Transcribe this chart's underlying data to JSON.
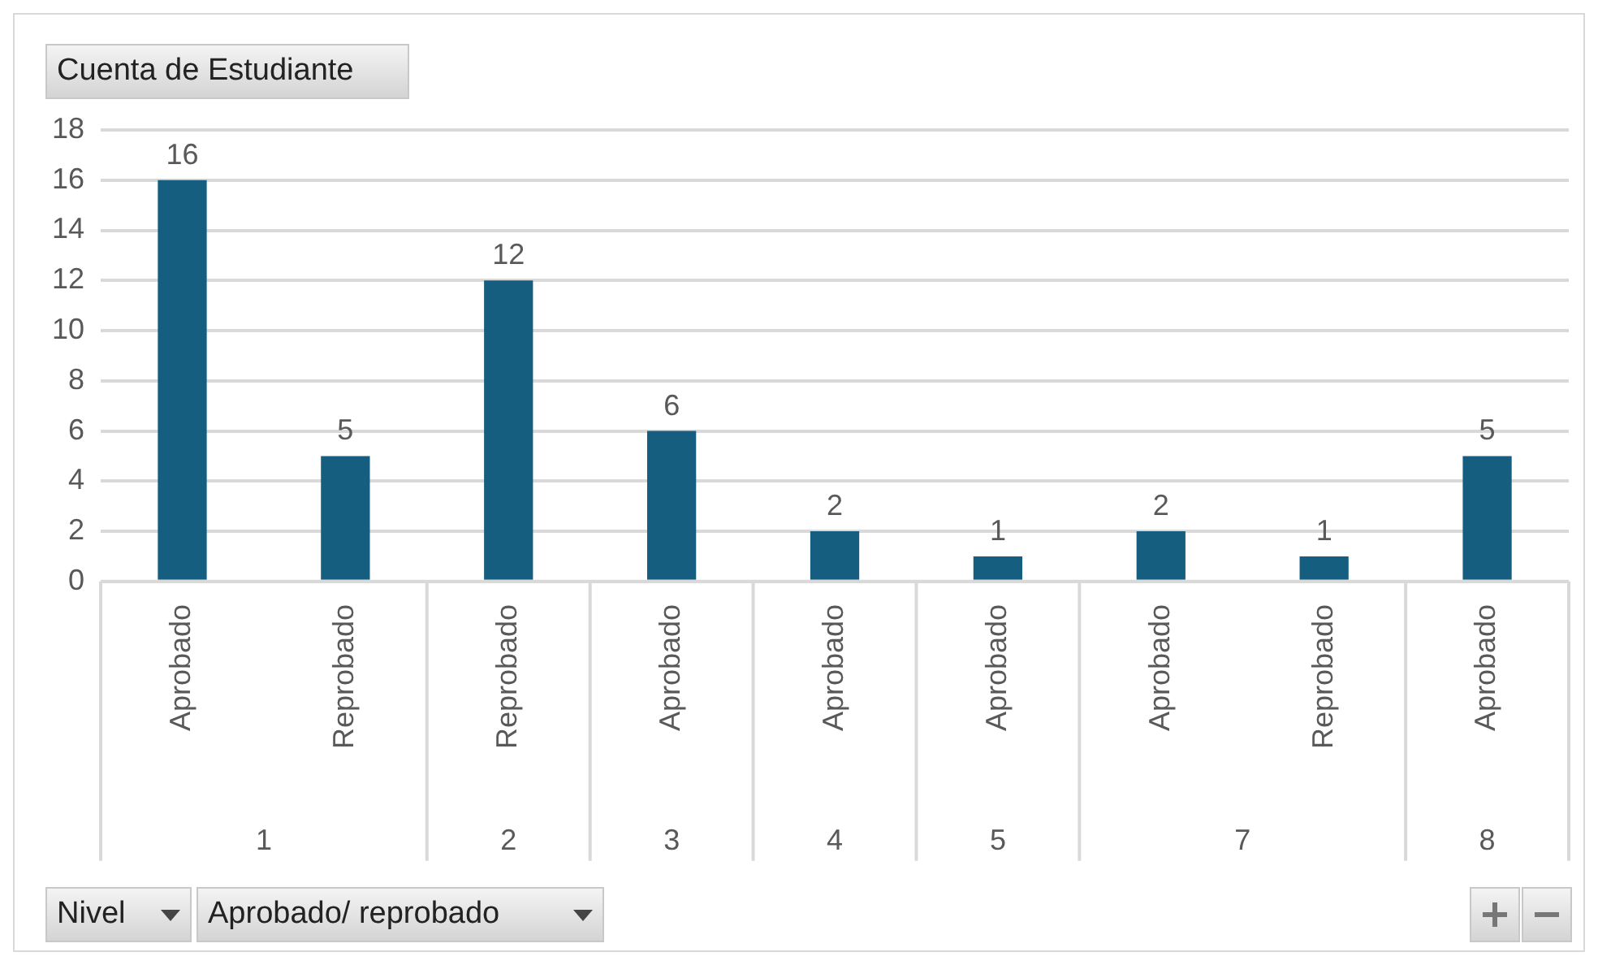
{
  "chart_data": {
    "type": "bar",
    "ylabel": "Cuenta de Estudiante",
    "xlabel": "Nivel",
    "legend_title": "Aprobado/ reprobado",
    "categories": [
      "Aprobado",
      "Reprobado",
      "Reprobado",
      "Aprobado",
      "Aprobado",
      "Aprobado",
      "Aprobado",
      "Reprobado",
      "Aprobado"
    ],
    "values": [
      16,
      5,
      12,
      6,
      2,
      1,
      2,
      1,
      5
    ],
    "color": "#155e80",
    "annotations": [
      "1",
      "2",
      "3",
      "4",
      "5",
      "7",
      "8"
    ],
    "ylim": [
      0,
      18
    ],
    "yticks": [
      0,
      2,
      4,
      6,
      8,
      10,
      12,
      14,
      16,
      18
    ],
    "grid": "y",
    "data_labels": true,
    "legend": false
  }
}
